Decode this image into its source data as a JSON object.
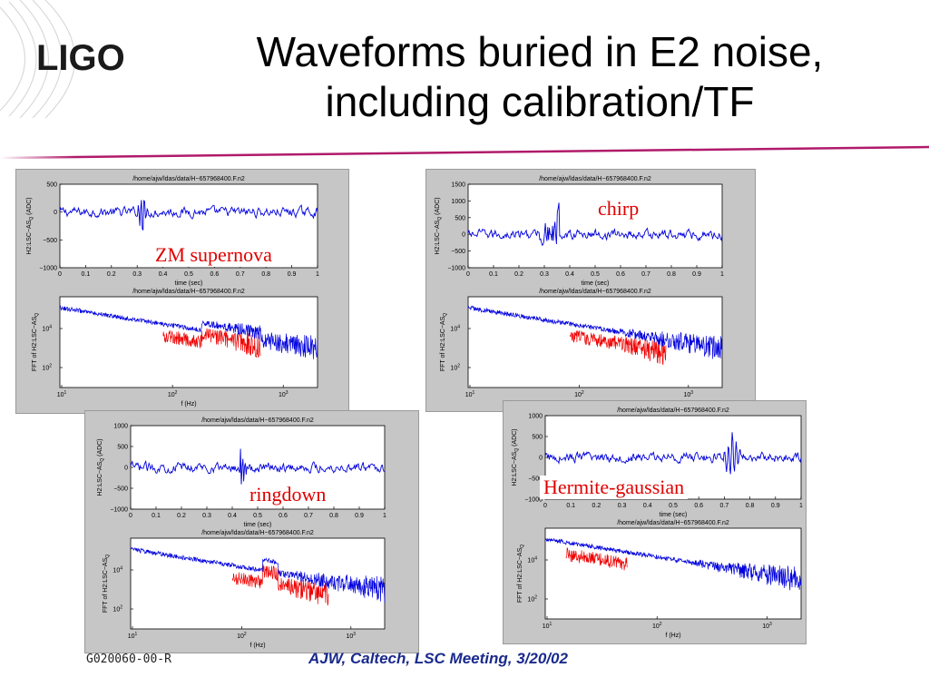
{
  "logo": {
    "text": "LIGO"
  },
  "title": {
    "line1": "Waveforms buried in E2 noise,",
    "line2": "including calibration/TF"
  },
  "plot_labels": {
    "path": "/home/ajw/ldas/data/H−657968400.F.n2",
    "time_xlabel": "time (sec)",
    "time_ylabel": "H2:LSC−AS",
    "time_ylabel_sub": "Q",
    "time_ylabel_unit": "(ADC)",
    "fft_xlabel": "f (Hz)",
    "fft_ylabel": "FFT of H2:LSC−AS",
    "fft_ylabel_sub": "Q"
  },
  "time_xticks": [
    "0",
    "0.1",
    "0.2",
    "0.3",
    "0.4",
    "0.5",
    "0.6",
    "0.7",
    "0.8",
    "0.9",
    "1"
  ],
  "fft_xticks": [
    {
      "b": "10",
      "e": "1"
    },
    {
      "b": "10",
      "e": "2"
    },
    {
      "b": "10",
      "e": "3"
    }
  ],
  "fft_yticks": [
    {
      "b": "10",
      "e": "4"
    },
    {
      "b": "10",
      "e": "2"
    }
  ],
  "colors": {
    "noise": "#0000dd",
    "signal": "#ee0000",
    "overlay_text": "#e00000",
    "figure_bg": "#c6c6c6",
    "footer_text": "#1a2a8c"
  },
  "chart_data": [
    {
      "type": "line",
      "id": "fig1",
      "overlay_label": "ZM supernova",
      "time_yticks": [
        "500",
        "0",
        "−500",
        "−1000"
      ],
      "time_panel": {
        "xlim": [
          0,
          1
        ],
        "ylim": [
          -1000,
          500
        ]
      },
      "fft_panel": {
        "xscale": "log",
        "yscale": "log"
      }
    },
    {
      "type": "line",
      "id": "fig2",
      "overlay_label": "chirp",
      "time_yticks": [
        "1500",
        "1000",
        "500",
        "0",
        "−500",
        "−1000"
      ],
      "time_panel": {
        "xlim": [
          0,
          1
        ],
        "ylim": [
          -1000,
          1500
        ]
      },
      "fft_panel": {
        "xscale": "log",
        "yscale": "log"
      }
    },
    {
      "type": "line",
      "id": "fig3",
      "overlay_label": "ringdown",
      "time_yticks": [
        "1000",
        "500",
        "0",
        "−500",
        "−1000"
      ],
      "time_panel": {
        "xlim": [
          0,
          1
        ],
        "ylim": [
          -1000,
          1000
        ]
      },
      "fft_panel": {
        "xscale": "log",
        "yscale": "log"
      }
    },
    {
      "type": "line",
      "id": "fig4",
      "overlay_label": "Hermite-gaussian",
      "time_yticks": [
        "1000",
        "500",
        "0",
        "−500",
        "−1000"
      ],
      "time_panel": {
        "xlim": [
          0,
          1
        ],
        "ylim": [
          -1000,
          1000
        ]
      },
      "fft_panel": {
        "xscale": "log",
        "yscale": "log"
      }
    }
  ],
  "footer": {
    "doc_id": "G020060-00-R",
    "credit": "AJW, Caltech, LSC Meeting, 3/20/02"
  }
}
